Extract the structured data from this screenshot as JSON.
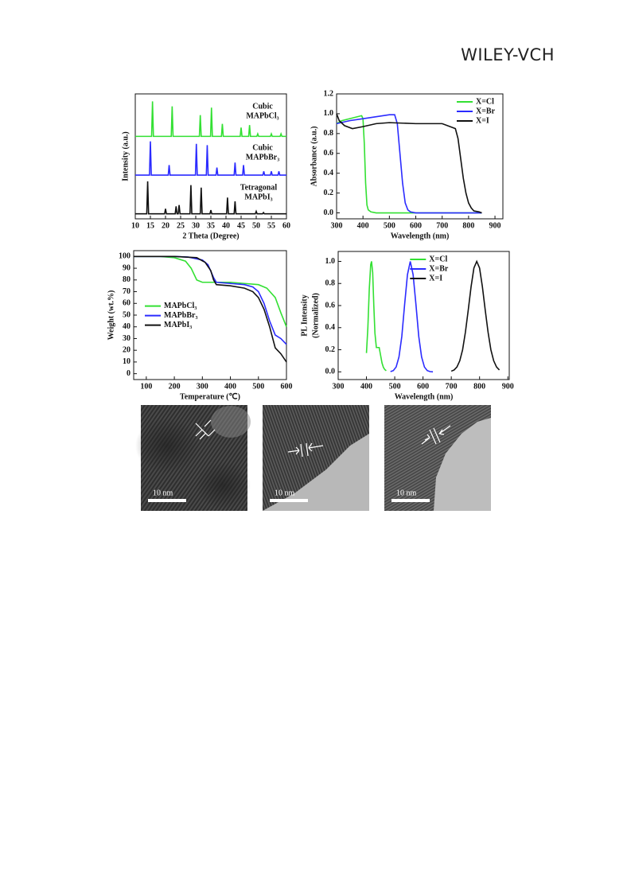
{
  "header": {
    "publisher": "WILEY-VCH"
  },
  "chart_data": [
    {
      "type": "line",
      "xlabel": "2 Theta (Degree)",
      "ylabel": "Intensity (a.u.)",
      "xlim": [
        10,
        60
      ],
      "ylim": [
        0,
        100
      ],
      "xticks": [
        10,
        15,
        20,
        25,
        30,
        35,
        40,
        45,
        50,
        55,
        60
      ],
      "series": [
        {
          "phase": "Cubic",
          "name": "MAPbCl₃",
          "color": "#33e033",
          "x": [
            10,
            15.4,
            15.7,
            16.0,
            21.9,
            22.2,
            22.5,
            31.2,
            31.5,
            31.8,
            34.9,
            35.2,
            35.5,
            38.5,
            38.8,
            39.1,
            44.7,
            45,
            45.3,
            47.5,
            47.8,
            48.1,
            50.2,
            50.5,
            50.8,
            54.7,
            55,
            55.3,
            57.9,
            58.2,
            58.5,
            60
          ],
          "values": [
            66,
            66,
            94,
            66,
            66,
            90,
            66,
            66,
            83,
            66,
            66,
            89,
            66,
            66,
            76,
            66,
            66,
            73,
            66,
            66,
            75,
            66,
            66,
            68,
            66,
            66,
            68,
            66,
            66,
            68,
            66,
            66
          ]
        },
        {
          "phase": "Cubic",
          "name": "MAPbBr₃",
          "color": "#2b2bff",
          "x": [
            10,
            14.7,
            15,
            15.3,
            20.9,
            21.2,
            21.5,
            29.9,
            30.2,
            30.5,
            33.5,
            33.8,
            34.1,
            36.7,
            37,
            37.3,
            42.7,
            43,
            43.3,
            45.5,
            45.8,
            46.1,
            52.2,
            52.5,
            52.8,
            54.7,
            55,
            55.3,
            57.2,
            57.5,
            57.8,
            60
          ],
          "values": [
            35,
            35,
            62,
            35,
            35,
            43,
            35,
            35,
            60,
            35,
            35,
            59,
            35,
            35,
            41,
            35,
            35,
            45,
            35,
            35,
            43,
            35,
            35,
            38,
            35,
            35,
            38,
            35,
            35,
            38,
            35,
            35
          ]
        },
        {
          "phase": "Tetragonal",
          "name": "MAPbI₃",
          "color": "#111111",
          "x": [
            10,
            13.8,
            14.1,
            14.4,
            19.7,
            20,
            20.3,
            23.2,
            23.5,
            23.8,
            24.2,
            24.5,
            24.8,
            28.1,
            28.4,
            28.7,
            31.5,
            31.8,
            32.1,
            34.7,
            35,
            35.3,
            40.2,
            40.5,
            40.8,
            42.7,
            43,
            43.3,
            49.7,
            50,
            50.3,
            52.1,
            52.4,
            52.7,
            60
          ],
          "values": [
            4,
            4,
            30,
            4,
            4,
            8,
            4,
            4,
            10,
            4,
            4,
            11,
            4,
            4,
            27,
            4,
            4,
            25,
            4,
            4,
            7,
            4,
            4,
            17,
            4,
            4,
            14,
            4,
            4,
            6,
            4,
            4,
            5,
            4,
            4
          ]
        }
      ]
    },
    {
      "type": "line",
      "xlabel": "Wavelength (nm)",
      "ylabel": "Absorbance (a.u.)",
      "legend": "upper right",
      "xlim": [
        300,
        930
      ],
      "ylim": [
        -0.06,
        1.2
      ],
      "xticks": [
        300,
        400,
        500,
        600,
        700,
        800,
        900
      ],
      "yticks": [
        {
          "value": 0,
          "label": "0.0"
        },
        0.2,
        0.4,
        0.6,
        0.8,
        {
          "value": 1,
          "label": "1.0"
        },
        1.2
      ],
      "series": [
        {
          "name": "X=Cl",
          "color": "#33e033",
          "x": [
            300,
            320,
            350,
            380,
            395,
            400,
            405,
            410,
            415,
            420,
            430,
            450,
            500,
            600,
            700,
            800,
            850
          ],
          "values": [
            0.9,
            0.93,
            0.95,
            0.97,
            0.98,
            0.95,
            0.7,
            0.3,
            0.08,
            0.03,
            0.01,
            0,
            0,
            0,
            0,
            0,
            0
          ]
        },
        {
          "name": "X=Br",
          "color": "#2b2bff",
          "x": [
            300,
            350,
            400,
            450,
            500,
            520,
            530,
            540,
            550,
            560,
            570,
            580,
            600,
            700,
            800,
            850
          ],
          "values": [
            0.9,
            0.93,
            0.95,
            0.97,
            0.99,
            0.99,
            0.9,
            0.6,
            0.3,
            0.1,
            0.03,
            0.01,
            0,
            0,
            0,
            0
          ]
        },
        {
          "name": "X=I",
          "color": "#111111",
          "x": [
            300,
            310,
            330,
            360,
            400,
            450,
            500,
            600,
            700,
            750,
            760,
            770,
            780,
            790,
            800,
            810,
            820,
            840,
            850
          ],
          "values": [
            1.0,
            0.93,
            0.88,
            0.85,
            0.87,
            0.9,
            0.91,
            0.9,
            0.9,
            0.85,
            0.75,
            0.55,
            0.35,
            0.2,
            0.1,
            0.05,
            0.02,
            0.01,
            0
          ]
        }
      ]
    },
    {
      "type": "line",
      "xlabel": "Temperature (℃)",
      "ylabel": "Weight (wt.%)",
      "legend": "center left",
      "xlim": [
        55,
        600
      ],
      "ylim": [
        -5,
        105
      ],
      "xticks": [
        100,
        200,
        300,
        400,
        500,
        600
      ],
      "yticks": [
        0,
        10,
        20,
        30,
        40,
        50,
        60,
        70,
        80,
        90,
        100
      ],
      "series": [
        {
          "name": "MAPbCl₃",
          "color": "#33e033",
          "x": [
            55,
            150,
            200,
            240,
            260,
            280,
            300,
            350,
            400,
            450,
            500,
            530,
            560,
            580,
            600
          ],
          "values": [
            100,
            100,
            99,
            96,
            90,
            80,
            78,
            78,
            78,
            77,
            76,
            73,
            65,
            52,
            40
          ]
        },
        {
          "name": "MAPbBr₃",
          "color": "#2b2bff",
          "x": [
            55,
            200,
            250,
            300,
            320,
            340,
            350,
            400,
            450,
            480,
            500,
            520,
            540,
            560,
            580,
            600
          ],
          "values": [
            100,
            100,
            99.5,
            97,
            93,
            82,
            78,
            77,
            76,
            74,
            70,
            60,
            45,
            33,
            30,
            25
          ]
        },
        {
          "name": "MAPbI₃",
          "color": "#111111",
          "x": [
            55,
            200,
            280,
            310,
            330,
            340,
            350,
            400,
            450,
            480,
            500,
            520,
            540,
            560,
            580,
            600
          ],
          "values": [
            100,
            100,
            99,
            95,
            88,
            80,
            76,
            75,
            73,
            70,
            65,
            55,
            40,
            22,
            17,
            10
          ]
        }
      ]
    },
    {
      "type": "line",
      "xlabel": "Wavelength (nm)",
      "ylabel": [
        "PL Intensity",
        "(Normalized)"
      ],
      "legend": "upper center",
      "xlim": [
        300,
        905
      ],
      "ylim": [
        -0.07,
        1.09
      ],
      "xticks": [
        300,
        400,
        500,
        600,
        700,
        800,
        900
      ],
      "yticks": [
        {
          "value": 0,
          "label": "0.0"
        },
        0.2,
        0.4,
        0.6,
        0.8,
        {
          "value": 1,
          "label": "1.0"
        }
      ],
      "series": [
        {
          "name": "X=Cl",
          "color": "#33e033",
          "x": [
            400,
            405,
            410,
            415,
            418,
            422,
            426,
            430,
            435,
            440,
            445,
            450,
            455,
            460,
            465,
            470
          ],
          "values": [
            0.17,
            0.4,
            0.75,
            0.97,
            1.0,
            0.9,
            0.6,
            0.35,
            0.22,
            0.22,
            0.22,
            0.15,
            0.08,
            0.04,
            0.02,
            0.01
          ]
        },
        {
          "name": "X=Br",
          "color": "#2b2bff",
          "x": [
            485,
            495,
            505,
            515,
            525,
            535,
            545,
            555,
            565,
            575,
            585,
            595,
            605,
            615,
            625,
            635
          ],
          "values": [
            0.002,
            0.011,
            0.044,
            0.135,
            0.32,
            0.61,
            0.88,
            1.0,
            0.88,
            0.61,
            0.32,
            0.135,
            0.044,
            0.011,
            0.002,
            0
          ]
        },
        {
          "name": "X=I",
          "color": "#111111",
          "x": [
            700,
            710,
            720,
            730,
            740,
            750,
            760,
            770,
            780,
            790,
            800,
            810,
            820,
            830,
            840,
            850,
            860,
            870
          ],
          "values": [
            0.006,
            0.017,
            0.044,
            0.1,
            0.2,
            0.36,
            0.56,
            0.77,
            0.94,
            1.0,
            0.94,
            0.77,
            0.56,
            0.36,
            0.2,
            0.1,
            0.044,
            0.017
          ]
        }
      ]
    }
  ],
  "images": [
    {
      "scale_label": "10 nm"
    },
    {
      "scale_label": "10 nm"
    },
    {
      "scale_label": "10 nm"
    }
  ]
}
